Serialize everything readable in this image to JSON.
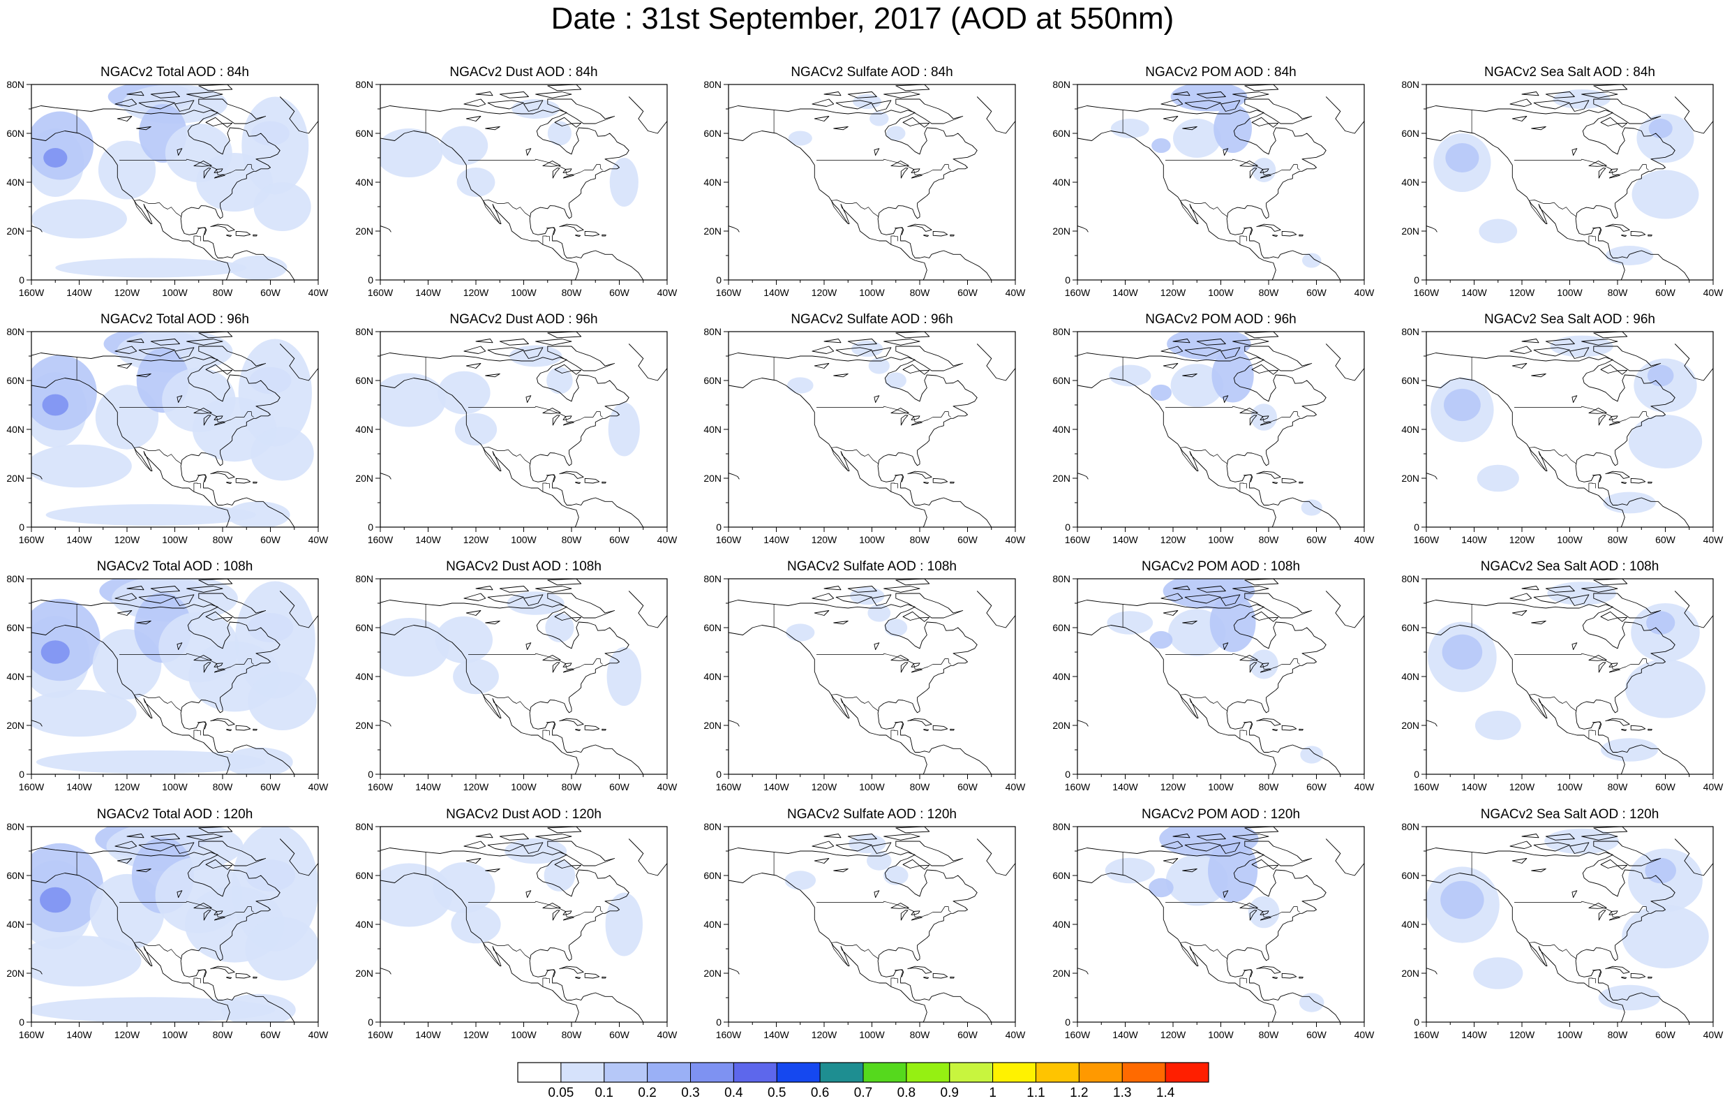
{
  "title": "Date : 31st September, 2017 (AOD at 550nm)",
  "map": {
    "projection": "cylindrical-equidistant",
    "lon_range": [
      -160,
      -40
    ],
    "lat_range": [
      0,
      80
    ],
    "x_ticks": [
      "160W",
      "140W",
      "120W",
      "100W",
      "80W",
      "60W",
      "40W"
    ],
    "y_ticks": [
      "0",
      "20N",
      "40N",
      "60N",
      "80N"
    ]
  },
  "panels": [
    {
      "title": "NGACv2 Total AOD : 84h",
      "product": "total",
      "forecast_hour": 84
    },
    {
      "title": "NGACv2 Dust AOD : 84h",
      "product": "dust",
      "forecast_hour": 84
    },
    {
      "title": "NGACv2 Sulfate AOD : 84h",
      "product": "sulfate",
      "forecast_hour": 84
    },
    {
      "title": "NGACv2 POM AOD : 84h",
      "product": "pom",
      "forecast_hour": 84
    },
    {
      "title": "NGACv2 Sea Salt AOD : 84h",
      "product": "seasalt",
      "forecast_hour": 84
    },
    {
      "title": "NGACv2 Total AOD : 96h",
      "product": "total",
      "forecast_hour": 96
    },
    {
      "title": "NGACv2 Dust AOD : 96h",
      "product": "dust",
      "forecast_hour": 96
    },
    {
      "title": "NGACv2 Sulfate AOD : 96h",
      "product": "sulfate",
      "forecast_hour": 96
    },
    {
      "title": "NGACv2 POM AOD : 96h",
      "product": "pom",
      "forecast_hour": 96
    },
    {
      "title": "NGACv2 Sea Salt AOD : 96h",
      "product": "seasalt",
      "forecast_hour": 96
    },
    {
      "title": "NGACv2 Total AOD : 108h",
      "product": "total",
      "forecast_hour": 108
    },
    {
      "title": "NGACv2 Dust AOD : 108h",
      "product": "dust",
      "forecast_hour": 108
    },
    {
      "title": "NGACv2 Sulfate AOD : 108h",
      "product": "sulfate",
      "forecast_hour": 108
    },
    {
      "title": "NGACv2 POM AOD : 108h",
      "product": "pom",
      "forecast_hour": 108
    },
    {
      "title": "NGACv2 Sea Salt AOD : 108h",
      "product": "seasalt",
      "forecast_hour": 108
    },
    {
      "title": "NGACv2 Total AOD : 120h",
      "product": "total",
      "forecast_hour": 120
    },
    {
      "title": "NGACv2 Dust AOD : 120h",
      "product": "dust",
      "forecast_hour": 120
    },
    {
      "title": "NGACv2 Sulfate AOD : 120h",
      "product": "sulfate",
      "forecast_hour": 120
    },
    {
      "title": "NGACv2 POM AOD : 120h",
      "product": "pom",
      "forecast_hour": 120
    },
    {
      "title": "NGACv2 Sea Salt  AOD : 120h",
      "product": "seasalt",
      "forecast_hour": 120
    }
  ],
  "colorbar": {
    "levels": [
      "0.05",
      "0.1",
      "0.2",
      "0.3",
      "0.4",
      "0.5",
      "0.6",
      "0.7",
      "0.8",
      "0.9",
      "1",
      "1.1",
      "1.2",
      "1.3",
      "1.4"
    ],
    "colors": [
      "#ffffff",
      "#d6e2fb",
      "#b6c8f8",
      "#9ab0f6",
      "#7e92f2",
      "#5d67ec",
      "#1548f0",
      "#1e8e91",
      "#55d91d",
      "#95f012",
      "#c8f53e",
      "#fff200",
      "#ffc400",
      "#ff9900",
      "#ff6a00",
      "#ff1f00"
    ]
  },
  "colors": {
    "background": "#ffffff",
    "coastline": "#000000",
    "aod_low": "#d6e2fb",
    "aod_mid": "#b6c8f8",
    "aod_high": "#7e92f2"
  }
}
